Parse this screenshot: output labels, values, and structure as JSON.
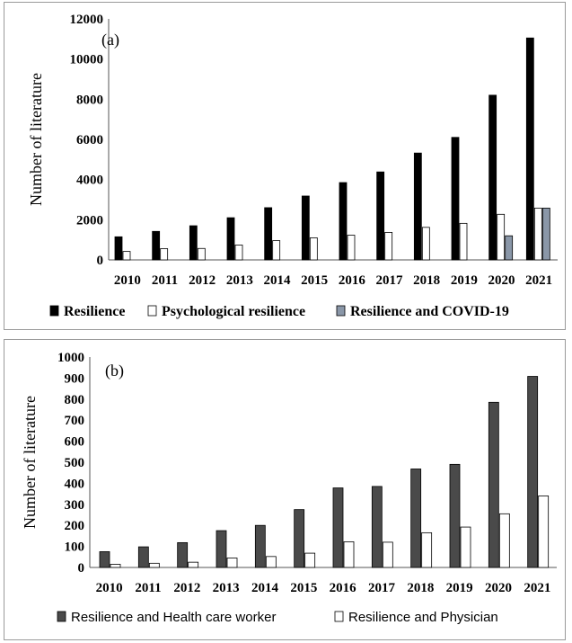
{
  "chart_data": [
    {
      "type": "bar",
      "panel_label": "(a)",
      "ylabel": "Number of literature",
      "xlabel": "",
      "ylim": [
        0,
        12000
      ],
      "yticks": [
        0,
        2000,
        4000,
        6000,
        8000,
        10000,
        12000
      ],
      "categories": [
        "2010",
        "2011",
        "2012",
        "2013",
        "2014",
        "2015",
        "2016",
        "2017",
        "2018",
        "2019",
        "2020",
        "2021"
      ],
      "grid": false,
      "legend_position": "bottom",
      "series": [
        {
          "name": "Resilience",
          "color": "#000000",
          "values": [
            1150,
            1420,
            1700,
            2100,
            2600,
            3180,
            3850,
            4380,
            5320,
            6100,
            8200,
            11050
          ]
        },
        {
          "name": "Psychological resilience",
          "color": "#ffffff",
          "values": [
            420,
            560,
            570,
            740,
            960,
            1100,
            1230,
            1370,
            1620,
            1820,
            2270,
            2580
          ]
        },
        {
          "name": "Resilience and COVID-19",
          "color": "#8a97a8",
          "values": [
            0,
            0,
            0,
            0,
            0,
            0,
            0,
            0,
            0,
            0,
            1200,
            2580
          ]
        }
      ]
    },
    {
      "type": "bar",
      "panel_label": "(b)",
      "ylabel": "Number of literature",
      "xlabel": "",
      "ylim": [
        0,
        1000
      ],
      "yticks": [
        0,
        100,
        200,
        300,
        400,
        500,
        600,
        700,
        800,
        900,
        1000
      ],
      "categories": [
        "2010",
        "2011",
        "2012",
        "2013",
        "2014",
        "2015",
        "2016",
        "2017",
        "2018",
        "2019",
        "2020",
        "2021"
      ],
      "grid": false,
      "legend_position": "bottom",
      "series": [
        {
          "name": "Resilience and Health care worker",
          "color": "#4a4a4a",
          "values": [
            75,
            98,
            118,
            175,
            200,
            275,
            378,
            385,
            468,
            490,
            785,
            908
          ]
        },
        {
          "name": "Resilience and Physician",
          "color": "#ffffff",
          "values": [
            15,
            20,
            25,
            45,
            52,
            68,
            122,
            120,
            165,
            192,
            255,
            340
          ]
        }
      ]
    }
  ]
}
